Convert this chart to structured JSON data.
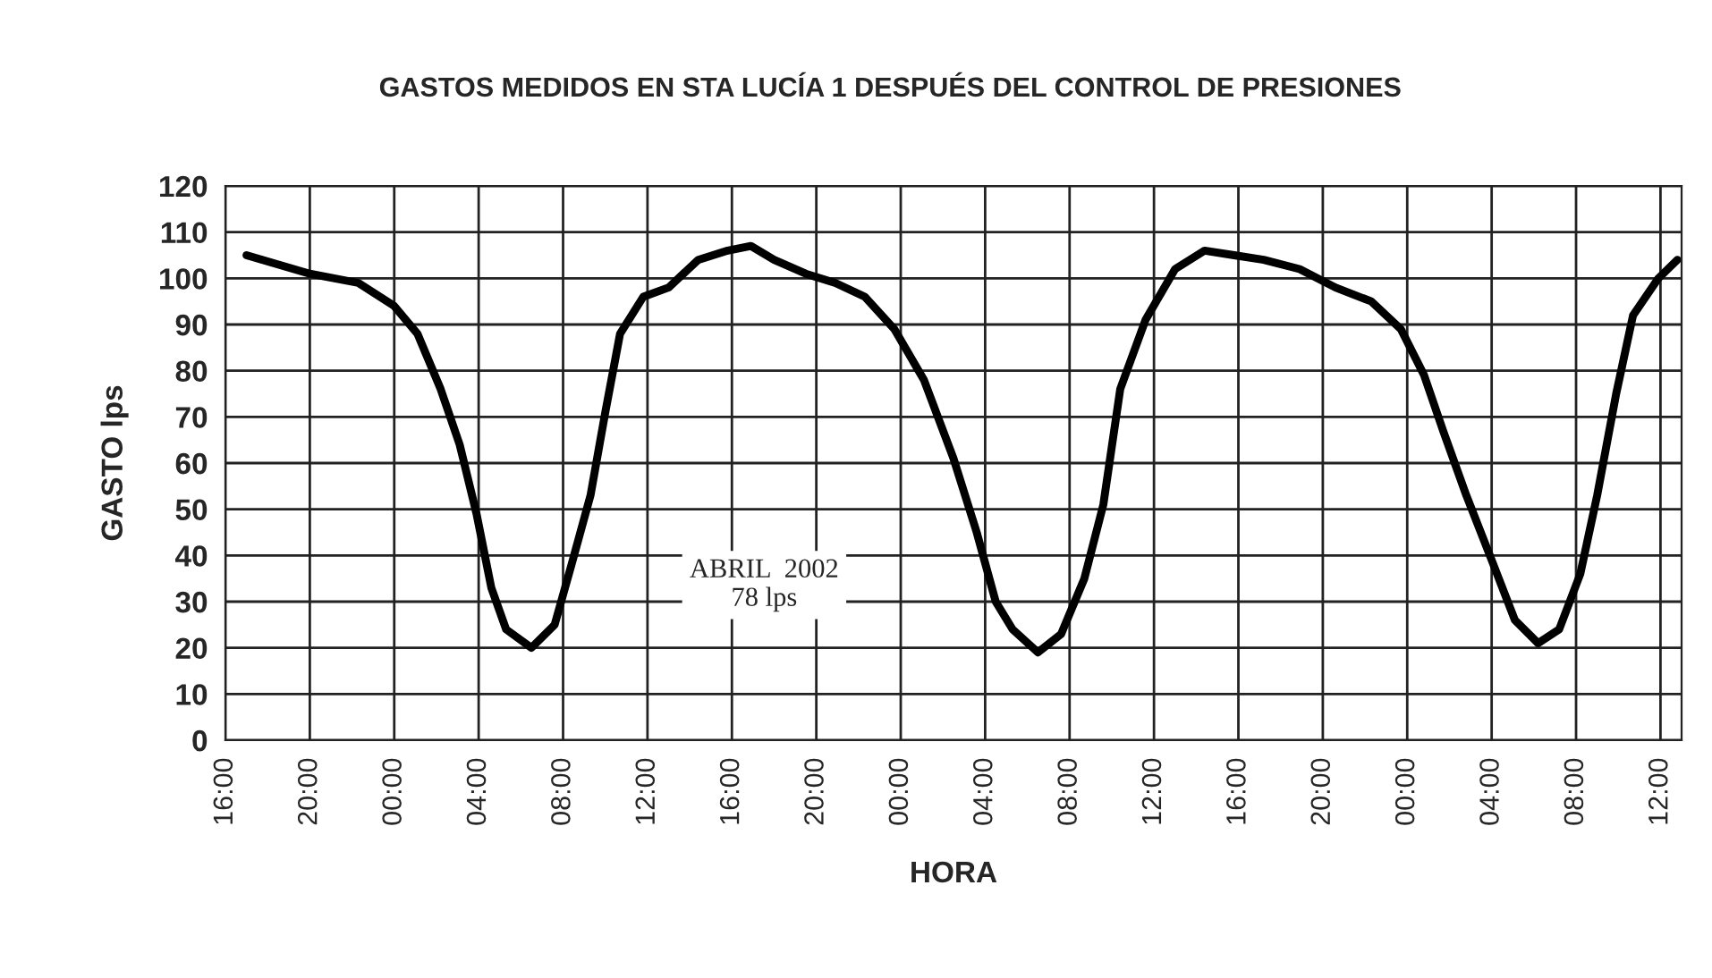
{
  "chart_data": {
    "type": "line",
    "title": "GASTOS MEDIDOS EN STA LUCÍA 1 DESPUÉS DEL CONTROL DE PRESIONES",
    "xlabel": "HORA",
    "ylabel": "GASTO lps",
    "annotations": [
      "ABRIL  2002\n78 lps"
    ],
    "x": [
      "2002-04-01T17:00",
      "2002-04-01T20:00",
      "2002-04-01T22:18",
      "2002-04-02T00:00",
      "2002-04-02T01:06",
      "2002-04-02T02:12",
      "2002-04-02T03:06",
      "2002-04-02T03:54",
      "2002-04-02T04:36",
      "2002-04-02T05:18",
      "2002-04-02T06:30",
      "2002-04-02T07:36",
      "2002-04-02T08:24",
      "2002-04-02T09:18",
      "2002-04-02T10:00",
      "2002-04-02T10:42",
      "2002-04-02T11:48",
      "2002-04-02T13:00",
      "2002-04-02T14:24",
      "2002-04-02T15:48",
      "2002-04-02T16:54",
      "2002-04-02T18:00",
      "2002-04-02T19:30",
      "2002-04-02T20:54",
      "2002-04-02T22:18",
      "2002-04-02T23:42",
      "2002-04-03T01:06",
      "2002-04-03T02:30",
      "2002-04-03T03:36",
      "2002-04-03T04:30",
      "2002-04-03T05:18",
      "2002-04-03T06:30",
      "2002-04-03T07:36",
      "2002-04-03T08:42",
      "2002-04-03T09:36",
      "2002-04-03T10:24",
      "2002-04-03T11:36",
      "2002-04-03T13:00",
      "2002-04-03T14:24",
      "2002-04-03T15:48",
      "2002-04-03T17:12",
      "2002-04-03T18:54",
      "2002-04-03T20:36",
      "2002-04-03T22:18",
      "2002-04-03T23:42",
      "2002-04-04T00:48",
      "2002-04-04T01:42",
      "2002-04-04T02:48",
      "2002-04-04T04:00",
      "2002-04-04T05:06",
      "2002-04-04T06:12",
      "2002-04-04T07:12",
      "2002-04-04T08:12",
      "2002-04-04T09:00",
      "2002-04-04T09:54",
      "2002-04-04T10:42",
      "2002-04-04T11:54",
      "2002-04-04T12:48"
    ],
    "series": [
      {
        "color": "#000000",
        "values": [
          105,
          101,
          99,
          94,
          88,
          76,
          64,
          49,
          33,
          24,
          20,
          25,
          38,
          53,
          71,
          88,
          96,
          98,
          104,
          106,
          107,
          104,
          101,
          99,
          96,
          89,
          78,
          61,
          45,
          30,
          24,
          19,
          23,
          35,
          51,
          76,
          91,
          102,
          106,
          105,
          104,
          102,
          98,
          95,
          89,
          79,
          67,
          53,
          39,
          26,
          21,
          24,
          36,
          53,
          75,
          92,
          100,
          104
        ]
      }
    ],
    "xlim": [
      "2002-04-01T16:00",
      "2002-04-04T13:00"
    ],
    "xticks": [
      {
        "value": "2002-04-01T16:00",
        "label": "16:00"
      },
      {
        "value": "2002-04-01T20:00",
        "label": "20:00"
      },
      {
        "value": "2002-04-02T00:00",
        "label": "00:00"
      },
      {
        "value": "2002-04-02T04:00",
        "label": "04:00"
      },
      {
        "value": "2002-04-02T08:00",
        "label": "08:00"
      },
      {
        "value": "2002-04-02T12:00",
        "label": "12:00"
      },
      {
        "value": "2002-04-02T16:00",
        "label": "16:00"
      },
      {
        "value": "2002-04-02T20:00",
        "label": "20:00"
      },
      {
        "value": "2002-04-03T00:00",
        "label": "00:00"
      },
      {
        "value": "2002-04-03T04:00",
        "label": "04:00"
      },
      {
        "value": "2002-04-03T08:00",
        "label": "08:00"
      },
      {
        "value": "2002-04-03T12:00",
        "label": "12:00"
      },
      {
        "value": "2002-04-03T16:00",
        "label": "16:00"
      },
      {
        "value": "2002-04-03T20:00",
        "label": "20:00"
      },
      {
        "value": "2002-04-04T00:00",
        "label": "00:00"
      },
      {
        "value": "2002-04-04T04:00",
        "label": "04:00"
      },
      {
        "value": "2002-04-04T08:00",
        "label": "08:00"
      },
      {
        "value": "2002-04-04T12:00",
        "label": "12:00"
      }
    ],
    "ylim": [
      0,
      120
    ],
    "yticks": [
      0,
      10,
      20,
      30,
      40,
      50,
      60,
      70,
      80,
      90,
      100,
      110,
      120
    ],
    "grid": true,
    "legend": false,
    "marker": "none",
    "line_style": "solid"
  }
}
